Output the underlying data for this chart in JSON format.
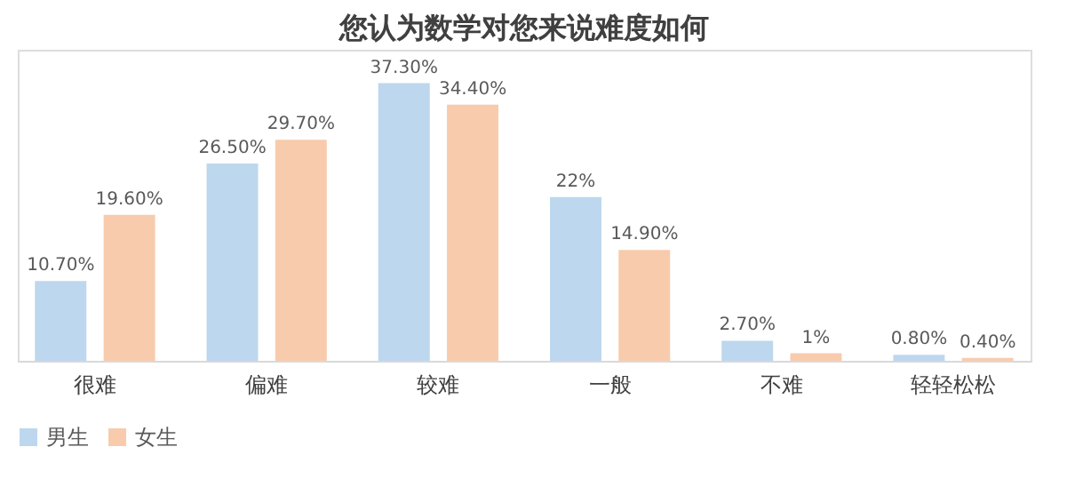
{
  "chart_data": {
    "type": "bar",
    "title": "您认为数学对您来说难度如何",
    "categories": [
      "很难",
      "偏难",
      "较难",
      "一般",
      "不难",
      "轻轻松松"
    ],
    "series": [
      {
        "name": "男生",
        "color": "#bdd7ee",
        "values": [
          10.7,
          26.5,
          37.3,
          22,
          2.7,
          0.8
        ],
        "value_labels": [
          "10.70%",
          "26.50%",
          "37.30%",
          "22%",
          "2.70%",
          "0.80%"
        ]
      },
      {
        "name": "女生",
        "color": "#f8cbad",
        "values": [
          19.6,
          29.7,
          34.4,
          14.9,
          1,
          0.4
        ],
        "value_labels": [
          "19.60%",
          "29.70%",
          "34.40%",
          "14.90%",
          "1%",
          "0.40%"
        ]
      }
    ],
    "legend": "bottom",
    "grid": false,
    "tick_labels": "x"
  }
}
